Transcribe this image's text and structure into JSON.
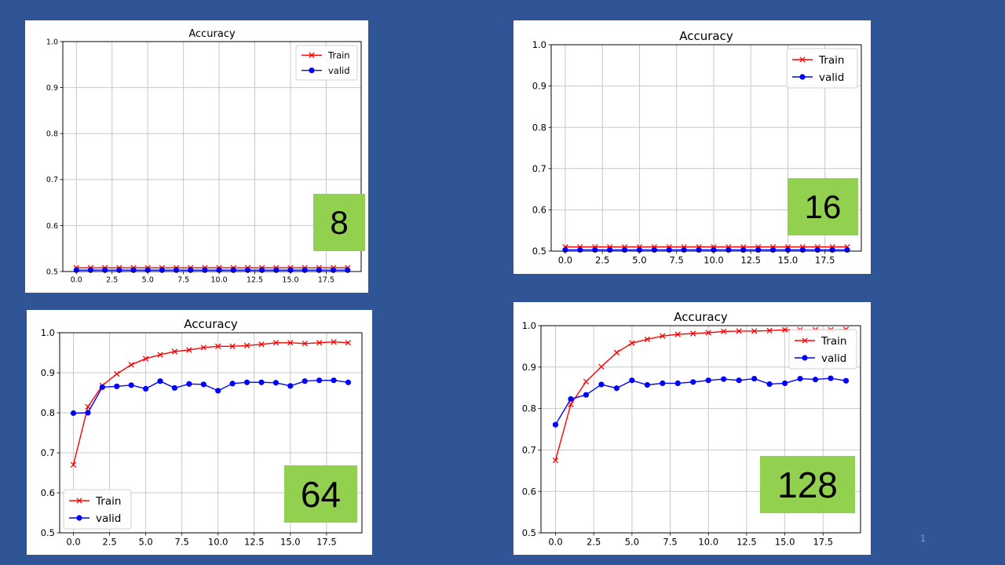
{
  "colors": {
    "background": "#2f5597",
    "train": "#ff0000",
    "valid": "#0000ff",
    "badge": "#92d050"
  },
  "slide_number": "1",
  "chart_data": [
    {
      "type": "line",
      "title": "Accuracy",
      "badge": "8",
      "xlabel": "",
      "ylabel": "",
      "xlim": [
        -0.95,
        19.95
      ],
      "ylim": [
        0.5,
        1.0
      ],
      "xticks": [
        0.0,
        2.5,
        5.0,
        7.5,
        10.0,
        12.5,
        15.0,
        17.5
      ],
      "yticks": [
        0.5,
        0.6,
        0.7,
        0.8,
        0.9,
        1.0
      ],
      "xtick_labels": [
        "0.0",
        "2.5",
        "5.0",
        "7.5",
        "10.0",
        "12.5",
        "15.0",
        "17.5"
      ],
      "ytick_labels": [
        "0.5",
        "0.6",
        "0.7",
        "0.8",
        "0.9",
        "1.0"
      ],
      "grid": true,
      "legend_position": "top-right",
      "x": [
        0,
        1,
        2,
        3,
        4,
        5,
        6,
        7,
        8,
        9,
        10,
        11,
        12,
        13,
        14,
        15,
        16,
        17,
        18,
        19
      ],
      "series": [
        {
          "name": "Train",
          "color": "#ff0000",
          "marker": "x",
          "values": [
            0.508,
            0.508,
            0.508,
            0.508,
            0.508,
            0.508,
            0.508,
            0.508,
            0.508,
            0.508,
            0.508,
            0.508,
            0.508,
            0.508,
            0.508,
            0.508,
            0.508,
            0.508,
            0.508,
            0.508
          ]
        },
        {
          "name": "valid",
          "color": "#0000ff",
          "marker": "o",
          "values": [
            0.503,
            0.503,
            0.503,
            0.503,
            0.503,
            0.503,
            0.503,
            0.503,
            0.503,
            0.503,
            0.503,
            0.503,
            0.503,
            0.503,
            0.503,
            0.503,
            0.503,
            0.503,
            0.503,
            0.503
          ]
        }
      ]
    },
    {
      "type": "line",
      "title": "Accuracy",
      "badge": "16",
      "xlabel": "",
      "ylabel": "",
      "xlim": [
        -0.95,
        19.95
      ],
      "ylim": [
        0.5,
        1.0
      ],
      "xticks": [
        0.0,
        2.5,
        5.0,
        7.5,
        10.0,
        12.5,
        15.0,
        17.5
      ],
      "yticks": [
        0.5,
        0.6,
        0.7,
        0.8,
        0.9,
        1.0
      ],
      "xtick_labels": [
        "0.0",
        "2.5",
        "5.0",
        "7.5",
        "10.0",
        "12.5",
        "15.0",
        "17.5"
      ],
      "ytick_labels": [
        "0.5",
        "0.6",
        "0.7",
        "0.8",
        "0.9",
        "1.0"
      ],
      "grid": true,
      "legend_position": "top-right",
      "x": [
        0,
        1,
        2,
        3,
        4,
        5,
        6,
        7,
        8,
        9,
        10,
        11,
        12,
        13,
        14,
        15,
        16,
        17,
        18,
        19
      ],
      "series": [
        {
          "name": "Train",
          "color": "#ff0000",
          "marker": "x",
          "values": [
            0.51,
            0.51,
            0.51,
            0.51,
            0.51,
            0.51,
            0.51,
            0.51,
            0.51,
            0.51,
            0.51,
            0.51,
            0.51,
            0.51,
            0.51,
            0.51,
            0.51,
            0.51,
            0.51,
            0.51
          ]
        },
        {
          "name": "valid",
          "color": "#0000ff",
          "marker": "o",
          "values": [
            0.503,
            0.503,
            0.503,
            0.503,
            0.503,
            0.503,
            0.503,
            0.503,
            0.503,
            0.503,
            0.503,
            0.503,
            0.503,
            0.503,
            0.503,
            0.503,
            0.503,
            0.503,
            0.503,
            0.503
          ]
        }
      ]
    },
    {
      "type": "line",
      "title": "Accuracy",
      "badge": "64",
      "xlabel": "",
      "ylabel": "",
      "xlim": [
        -0.95,
        19.95
      ],
      "ylim": [
        0.5,
        1.0
      ],
      "xticks": [
        0.0,
        2.5,
        5.0,
        7.5,
        10.0,
        12.5,
        15.0,
        17.5
      ],
      "yticks": [
        0.5,
        0.6,
        0.7,
        0.8,
        0.9,
        1.0
      ],
      "xtick_labels": [
        "0.0",
        "2.5",
        "5.0",
        "7.5",
        "10.0",
        "12.5",
        "15.0",
        "17.5"
      ],
      "ytick_labels": [
        "0.5",
        "0.6",
        "0.7",
        "0.8",
        "0.9",
        "1.0"
      ],
      "grid": true,
      "legend_position": "bottom-left",
      "x": [
        0,
        1,
        2,
        3,
        4,
        5,
        6,
        7,
        8,
        9,
        10,
        11,
        12,
        13,
        14,
        15,
        16,
        17,
        18,
        19
      ],
      "series": [
        {
          "name": "Train",
          "color": "#ff0000",
          "marker": "x",
          "values": [
            0.67,
            0.815,
            0.868,
            0.897,
            0.92,
            0.935,
            0.945,
            0.953,
            0.957,
            0.963,
            0.966,
            0.966,
            0.968,
            0.971,
            0.975,
            0.975,
            0.973,
            0.975,
            0.977,
            0.975
          ]
        },
        {
          "name": "valid",
          "color": "#0000ff",
          "marker": "o",
          "values": [
            0.799,
            0.8,
            0.864,
            0.866,
            0.869,
            0.86,
            0.879,
            0.862,
            0.872,
            0.871,
            0.855,
            0.873,
            0.876,
            0.876,
            0.875,
            0.867,
            0.879,
            0.881,
            0.881,
            0.876
          ]
        }
      ]
    },
    {
      "type": "line",
      "title": "Accuracy",
      "badge": "128",
      "xlabel": "",
      "ylabel": "",
      "xlim": [
        -0.95,
        19.95
      ],
      "ylim": [
        0.5,
        1.0
      ],
      "xticks": [
        0.0,
        2.5,
        5.0,
        7.5,
        10.0,
        12.5,
        15.0,
        17.5
      ],
      "yticks": [
        0.5,
        0.6,
        0.7,
        0.8,
        0.9,
        1.0
      ],
      "xtick_labels": [
        "0.0",
        "2.5",
        "5.0",
        "7.5",
        "10.0",
        "12.5",
        "15.0",
        "17.5"
      ],
      "ytick_labels": [
        "0.5",
        "0.6",
        "0.7",
        "0.8",
        "0.9",
        "1.0"
      ],
      "grid": true,
      "legend_position": "top-right",
      "x": [
        0,
        1,
        2,
        3,
        4,
        5,
        6,
        7,
        8,
        9,
        10,
        11,
        12,
        13,
        14,
        15,
        16,
        17,
        18,
        19
      ],
      "series": [
        {
          "name": "Train",
          "color": "#ff0000",
          "marker": "x",
          "values": [
            0.675,
            0.81,
            0.865,
            0.901,
            0.935,
            0.958,
            0.967,
            0.975,
            0.979,
            0.981,
            0.983,
            0.986,
            0.987,
            0.987,
            0.988,
            0.99,
            0.99,
            0.99,
            0.99,
            0.991
          ]
        },
        {
          "name": "valid",
          "color": "#0000ff",
          "marker": "o",
          "values": [
            0.761,
            0.823,
            0.833,
            0.858,
            0.849,
            0.868,
            0.857,
            0.861,
            0.861,
            0.864,
            0.868,
            0.871,
            0.868,
            0.872,
            0.859,
            0.861,
            0.872,
            0.87,
            0.873,
            0.867
          ]
        }
      ]
    }
  ]
}
